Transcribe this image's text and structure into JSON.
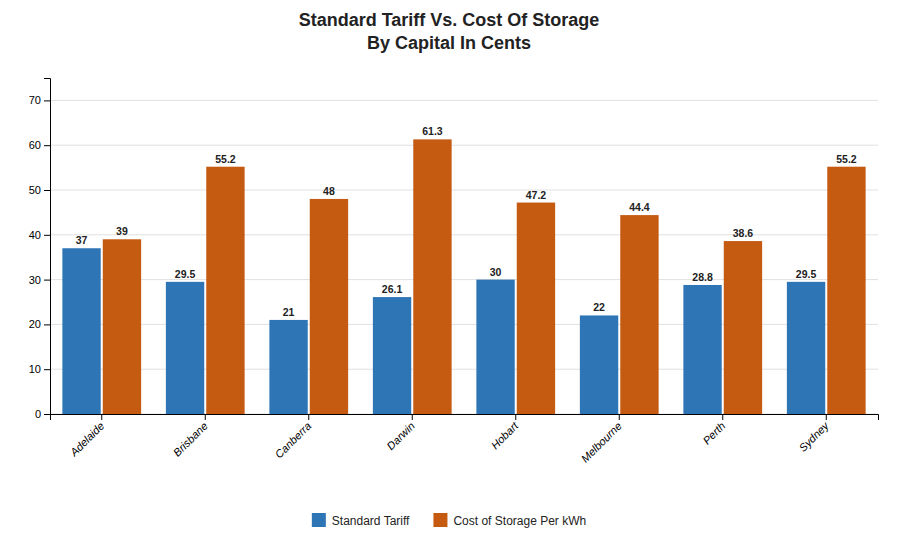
{
  "chart_data": {
    "type": "bar",
    "title": "Standard Tariff Vs. Cost Of Storage\nBy Capital In Cents",
    "categories": [
      "Adelaide",
      "Brisbane",
      "Canberra",
      "Darwin",
      "Hobart",
      "Melbourne",
      "Perth",
      "Sydney"
    ],
    "series": [
      {
        "name": "Standard Tariff",
        "color": "#2E75B6",
        "values": [
          37,
          29.5,
          21,
          26.1,
          30,
          22,
          28.8,
          29.5
        ]
      },
      {
        "name": "Cost of Storage Per kWh",
        "color": "#C55A11",
        "values": [
          39,
          55.2,
          48,
          61.3,
          47.2,
          44.4,
          38.6,
          55.2
        ]
      }
    ],
    "ylim": [
      0,
      75
    ],
    "yticks": [
      0,
      10,
      20,
      30,
      40,
      50,
      60,
      70
    ],
    "grid": true,
    "data_labels": true,
    "legend": "bottom"
  }
}
